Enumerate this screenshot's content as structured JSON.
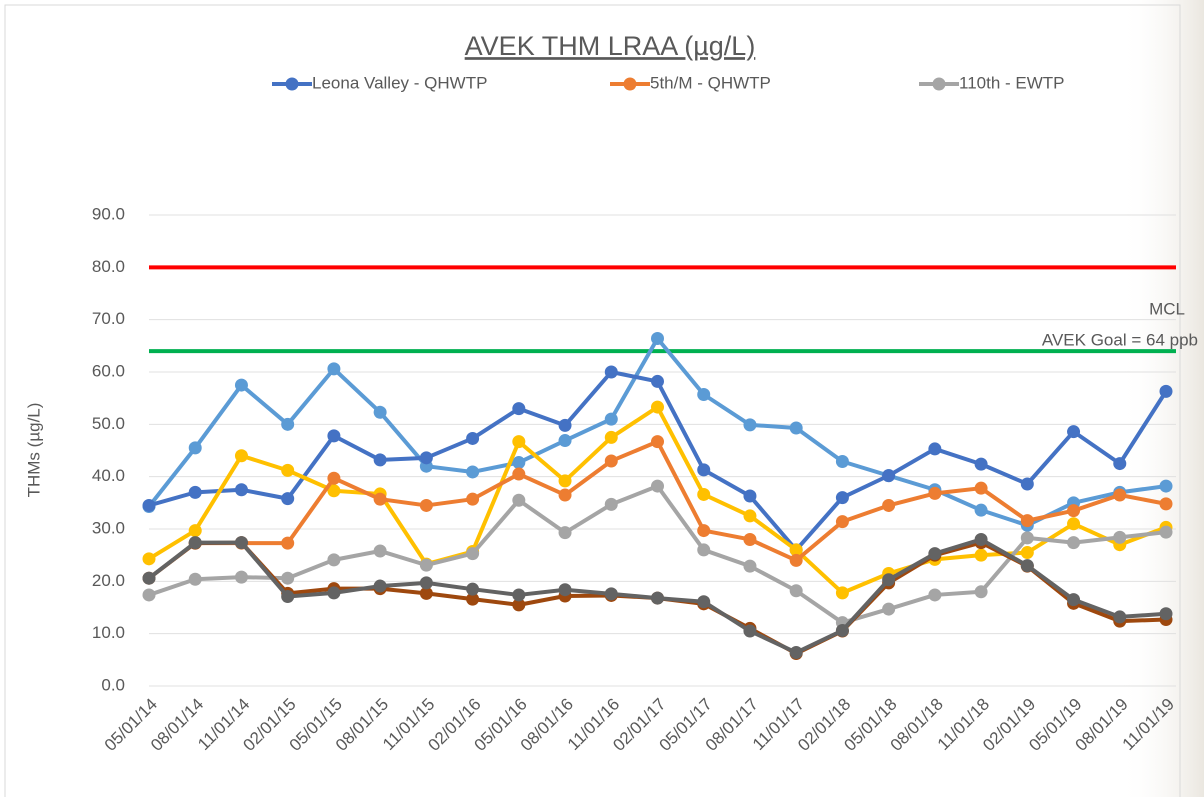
{
  "chart_data": {
    "type": "line",
    "title": "AVEK THM LRAA (µg/L)",
    "y_label": "THMs (µg/L)",
    "categories": [
      "05/01/14",
      "08/01/14",
      "11/01/14",
      "02/01/15",
      "05/01/15",
      "08/01/15",
      "11/01/15",
      "02/01/16",
      "05/01/16",
      "08/01/16",
      "11/01/16",
      "02/01/17",
      "05/01/17",
      "08/01/17",
      "11/01/17",
      "02/01/18",
      "05/01/18",
      "08/01/18",
      "11/01/18",
      "02/01/19",
      "05/01/19",
      "08/01/19",
      "11/01/19"
    ],
    "ylim": [
      0,
      90
    ],
    "yticks": [
      {
        "value": 0,
        "label": "0.0"
      },
      {
        "value": 10,
        "label": "10.0"
      },
      {
        "value": 20,
        "label": "20.0"
      },
      {
        "value": 30,
        "label": "30.0"
      },
      {
        "value": 40,
        "label": "40.0"
      },
      {
        "value": 50,
        "label": "50.0"
      },
      {
        "value": 60,
        "label": "60.0"
      },
      {
        "value": 70,
        "label": "70.0"
      },
      {
        "value": 80,
        "label": "80.0"
      },
      {
        "value": 90,
        "label": "90.0"
      }
    ],
    "reference_lines": [
      {
        "value": 80,
        "color": "#ff0000",
        "label": "MCL"
      },
      {
        "value": 64,
        "color": "#00b050",
        "label": "AVEK Goal = 64 ppb"
      }
    ],
    "series": [
      {
        "color": "#5b9bd5",
        "values": [
          34.3,
          45.5,
          57.5,
          50,
          60.6,
          52.3,
          42,
          40.9,
          42.7,
          46.9,
          51,
          66.4,
          55.7,
          49.9,
          49.3,
          42.9,
          40.2,
          37.5,
          33.6,
          30.7,
          35,
          37,
          38.2
        ]
      },
      {
        "name": "Leona Valley - QHWTP",
        "color": "#4472c4",
        "values": [
          34.5,
          37,
          37.5,
          35.8,
          47.8,
          43.2,
          43.6,
          47.3,
          53,
          49.8,
          60,
          58.2,
          41.3,
          36.3,
          26,
          36,
          40.2,
          45.3,
          42.4,
          38.6,
          48.6,
          42.5,
          56.3
        ]
      },
      {
        "color": "#ffc000",
        "values": [
          24.3,
          29.7,
          44,
          41.2,
          37.3,
          36.7,
          23.3,
          25.7,
          46.7,
          39.2,
          47.5,
          53.3,
          36.6,
          32.5,
          26,
          17.8,
          21.5,
          24.2,
          25,
          25.5,
          31,
          27,
          30.3
        ]
      },
      {
        "name": "5th/M - QHWTP",
        "color": "#ed7d31",
        "values": [
          null,
          27.3,
          27.3,
          27.3,
          39.7,
          35.7,
          34.5,
          35.7,
          40.5,
          36.5,
          43,
          46.7,
          29.7,
          28,
          24,
          31.4,
          34.5,
          36.8,
          37.8,
          31.6,
          33.5,
          36.5,
          34.8
        ]
      },
      {
        "name": "110th - EWTP",
        "color": "#a5a5a5",
        "values": [
          17.4,
          20.4,
          20.8,
          20.6,
          24.1,
          25.8,
          23.1,
          25.3,
          35.5,
          29.3,
          34.7,
          38.2,
          26,
          22.9,
          18.2,
          12.1,
          14.7,
          17.4,
          18,
          28.3,
          27.4,
          28.4,
          29.4
        ]
      },
      {
        "color": "#9e480e",
        "values": [
          20.6,
          27.3,
          27.4,
          17.7,
          18.6,
          18.6,
          17.7,
          16.6,
          15.5,
          17.2,
          17.3,
          16.8,
          15.7,
          11,
          6.2,
          10.5,
          19.7,
          25,
          27.4,
          22.9,
          15.8,
          12.4,
          12.7
        ]
      },
      {
        "color": "#636363",
        "values": [
          20.6,
          27.4,
          27.4,
          17.1,
          17.8,
          19.1,
          19.7,
          18.5,
          17.4,
          18.4,
          17.6,
          16.8,
          16.1,
          10.5,
          6.4,
          10.6,
          20.3,
          25.3,
          28,
          23,
          16.5,
          13.2,
          13.8
        ]
      }
    ]
  }
}
